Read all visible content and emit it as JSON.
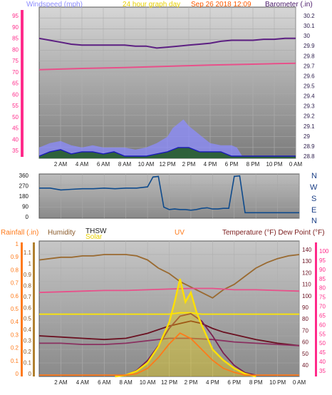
{
  "chart_data": [
    {
      "type": "line",
      "title": "24 hour graph day",
      "subtitle": "Sep 26 2018 12:09",
      "left_axis_label": "Windspeed (mph)",
      "right_axis_label": "Barometer (.in)",
      "x_ticks": [
        "2 AM",
        "4 AM",
        "6 AM",
        "8 AM",
        "10 AM",
        "12 PM",
        "2 PM",
        "4 PM",
        "6 PM",
        "8 PM",
        "10 PM",
        "0 AM"
      ],
      "left_ticks": [
        "95",
        "90",
        "85",
        "80",
        "75",
        "70",
        "65",
        "60",
        "55",
        "50",
        "45",
        "40",
        "35"
      ],
      "right_ticks": [
        "30.2",
        "30.1",
        "30",
        "29.9",
        "29.8",
        "29.7",
        "29.6",
        "29.5",
        "29.4",
        "29.3",
        "29.2",
        "29.1",
        "29",
        "28.9",
        "28.8"
      ],
      "left_range": [
        30,
        100
      ],
      "right_range": [
        28.75,
        30.3
      ],
      "x_range": [
        0,
        24
      ],
      "series": [
        {
          "color": "#5c1f82",
          "axis": "right",
          "x": [
            0,
            1,
            2,
            3,
            4,
            5,
            6,
            7,
            8,
            9,
            10,
            11,
            12,
            13,
            14,
            15,
            16,
            17,
            18,
            19,
            20,
            21,
            22,
            23,
            24
          ],
          "y": [
            29.98,
            29.96,
            29.94,
            29.92,
            29.91,
            29.91,
            29.91,
            29.91,
            29.91,
            29.9,
            29.9,
            29.88,
            29.89,
            29.9,
            29.91,
            29.92,
            29.93,
            29.95,
            29.96,
            29.96,
            29.96,
            29.97,
            29.97,
            29.98,
            29.98
          ]
        },
        {
          "color": "#e8508a",
          "axis": "left",
          "x": [
            0,
            2,
            4,
            6,
            8,
            10,
            12,
            14,
            16,
            18,
            20,
            22,
            24
          ],
          "y": [
            71.0,
            71.3,
            71.6,
            71.8,
            72.0,
            72.3,
            72.6,
            72.9,
            73.2,
            73.4,
            73.6,
            73.8,
            74.0
          ]
        }
      ],
      "wind_gust_color": "#8c8cff",
      "wind_avg_color": "#1a1ab8",
      "wind_fill_color": "#1e5a1e",
      "wind_gust_x": [
        0,
        1,
        2,
        3,
        4,
        5,
        6,
        7,
        8,
        9,
        10,
        11,
        12,
        12.5,
        13,
        13.5,
        14,
        15,
        16,
        17,
        18,
        18.5,
        19,
        20,
        21,
        22,
        23,
        24
      ],
      "wind_gust_y": [
        35,
        37,
        38,
        36,
        35,
        36,
        35,
        35,
        35,
        34,
        35,
        37,
        40,
        44,
        46,
        48,
        45,
        41,
        37,
        36,
        36,
        35,
        31,
        31,
        31,
        31,
        31,
        31
      ],
      "wind_avg_x": [
        0,
        1,
        2,
        3,
        4,
        5,
        6,
        7,
        8,
        9,
        10,
        11,
        12,
        13,
        14,
        15,
        16,
        17,
        18,
        18.5,
        19,
        24
      ],
      "wind_avg_y": [
        31,
        33,
        34,
        32,
        33,
        33,
        32,
        33,
        31,
        31,
        31,
        32,
        33,
        35,
        35,
        33,
        33,
        33,
        31,
        31,
        31,
        31
      ]
    },
    {
      "type": "line",
      "title": "",
      "y_ticks": [
        "360",
        "270",
        "180",
        "90",
        "0"
      ],
      "direction_labels": [
        "N",
        "W",
        "S",
        "E",
        "N"
      ],
      "y_range": [
        0,
        360
      ],
      "x_range": [
        0,
        24
      ],
      "series": [
        {
          "color": "#0e4a8c",
          "x": [
            0,
            1,
            2,
            3,
            4,
            5,
            6,
            7,
            8,
            9,
            10,
            10.5,
            11,
            11.5,
            12,
            12.5,
            13,
            13.5,
            14,
            14.5,
            15,
            15.5,
            16,
            16.5,
            17,
            17.5,
            18,
            18.5,
            19,
            20,
            21,
            22,
            23,
            24
          ],
          "y": [
            245,
            245,
            230,
            235,
            240,
            240,
            245,
            240,
            245,
            245,
            255,
            335,
            340,
            90,
            70,
            75,
            70,
            70,
            65,
            70,
            80,
            85,
            75,
            75,
            80,
            80,
            340,
            345,
            45,
            45,
            45,
            45,
            45,
            45
          ]
        }
      ]
    },
    {
      "type": "line",
      "title": "",
      "left_axis_labels": [
        "Rainfall (.in)",
        "Humidity",
        "THSW",
        "Solar",
        "UV"
      ],
      "right_axis_label": "Temperature (°F) Dew Point (°F)",
      "x_ticks": [
        "2 AM",
        "4 AM",
        "6 AM",
        "8 AM",
        "10 AM",
        "12 PM",
        "2 PM",
        "4 PM",
        "6 PM",
        "8 PM",
        "10 PM",
        "0 AM"
      ],
      "rain_ticks": [
        "1",
        "0.9",
        "0.8",
        "0.7",
        "0.6",
        "0.5",
        "0.4",
        "0.3",
        "0.2",
        "0.1",
        "0"
      ],
      "humidity_ticks": [
        "100",
        "90",
        "80",
        "70",
        "60",
        "50",
        "40",
        "30",
        "20",
        "10",
        "0"
      ],
      "uv_ticks": [
        "1.1",
        "1",
        "0.9",
        "0.8",
        "0.7",
        "0.6",
        "0.5",
        "0.4",
        "0.3",
        "0.2",
        "0.1",
        "0"
      ],
      "temp_ticks": [
        "140",
        "130",
        "120",
        "110",
        "100",
        "90",
        "80",
        "70",
        "60",
        "50",
        "40"
      ],
      "dew_ticks": [
        "100",
        "95",
        "90",
        "85",
        "80",
        "75",
        "70",
        "65",
        "60",
        "55",
        "50",
        "45",
        "40",
        "35"
      ],
      "humidity_range": [
        0,
        100
      ],
      "temp_range": [
        35,
        145
      ],
      "x_range": [
        0,
        24
      ],
      "series": [
        {
          "color": "#9a6a30",
          "axis": "humidity",
          "x": [
            0,
            1,
            2,
            3,
            4,
            5,
            6,
            7,
            8,
            9,
            10,
            11,
            12,
            13,
            14,
            15,
            16,
            17,
            18,
            19,
            20,
            21,
            22,
            23,
            24
          ],
          "y": [
            86,
            87,
            88,
            88,
            89,
            89,
            90,
            90,
            90,
            89,
            86,
            80,
            76,
            70,
            66,
            62,
            58,
            64,
            68,
            74,
            80,
            84,
            87,
            89,
            90
          ]
        },
        {
          "color": "#e8508a",
          "axis": "humidity",
          "x": [
            0,
            2,
            4,
            6,
            8,
            10,
            12,
            14,
            16,
            18,
            20,
            22,
            24
          ],
          "y": [
            62,
            62.5,
            63,
            63.5,
            63.5,
            64,
            64.5,
            65,
            65,
            64,
            64,
            63.5,
            63
          ]
        },
        {
          "color": "#ffe800",
          "axis": "humidity",
          "x": [
            0,
            2,
            4,
            6,
            8,
            10,
            12,
            13,
            14,
            15,
            16,
            17,
            18,
            19,
            20,
            21,
            22,
            24
          ],
          "y": [
            46,
            46,
            46,
            46,
            46,
            46,
            46,
            47,
            47,
            46,
            46,
            46,
            46,
            46,
            46,
            46,
            46,
            46
          ]
        },
        {
          "color": "#6a1020",
          "axis": "temp",
          "x": [
            0,
            2,
            4,
            6,
            8,
            10,
            12,
            13,
            14,
            15,
            16,
            17,
            18,
            19,
            20,
            22,
            24
          ],
          "y": [
            68,
            67,
            66,
            65,
            66,
            70,
            76,
            78,
            80,
            78,
            74,
            71,
            69,
            67,
            65,
            62,
            60
          ]
        },
        {
          "color": "#8a3060",
          "axis": "temp",
          "x": [
            0,
            2,
            4,
            6,
            8,
            10,
            12,
            14,
            16,
            18,
            20,
            22,
            24
          ],
          "y": [
            62,
            62,
            61,
            61,
            62,
            64,
            66,
            66,
            65,
            63,
            62,
            61,
            60
          ]
        },
        {
          "color": "#7a2050",
          "axis": "temp",
          "x": [
            8,
            9,
            10,
            11,
            12,
            13,
            14,
            15,
            16,
            17,
            18,
            19,
            20
          ],
          "y": [
            36,
            40,
            48,
            60,
            74,
            84,
            86,
            80,
            68,
            54,
            44,
            38,
            36
          ]
        },
        {
          "color": "#ffe000",
          "axis": "humidity",
          "kind": "solar",
          "x": [
            7,
            8,
            9,
            10,
            11,
            12,
            12.5,
            13,
            13.5,
            14,
            14.5,
            15,
            16,
            17,
            18,
            19,
            20
          ],
          "y": [
            0,
            1,
            4,
            10,
            22,
            40,
            55,
            72,
            55,
            62,
            48,
            38,
            20,
            12,
            6,
            2,
            0
          ]
        },
        {
          "color": "#ff7a1a",
          "axis": "humidity",
          "kind": "uv",
          "x": [
            0,
            8,
            9,
            10,
            11,
            12,
            13,
            14,
            15,
            16,
            17,
            18,
            19,
            20,
            24
          ],
          "y": [
            1,
            1,
            2,
            6,
            14,
            24,
            32,
            28,
            20,
            12,
            6,
            3,
            1,
            1,
            1
          ]
        }
      ]
    }
  ]
}
